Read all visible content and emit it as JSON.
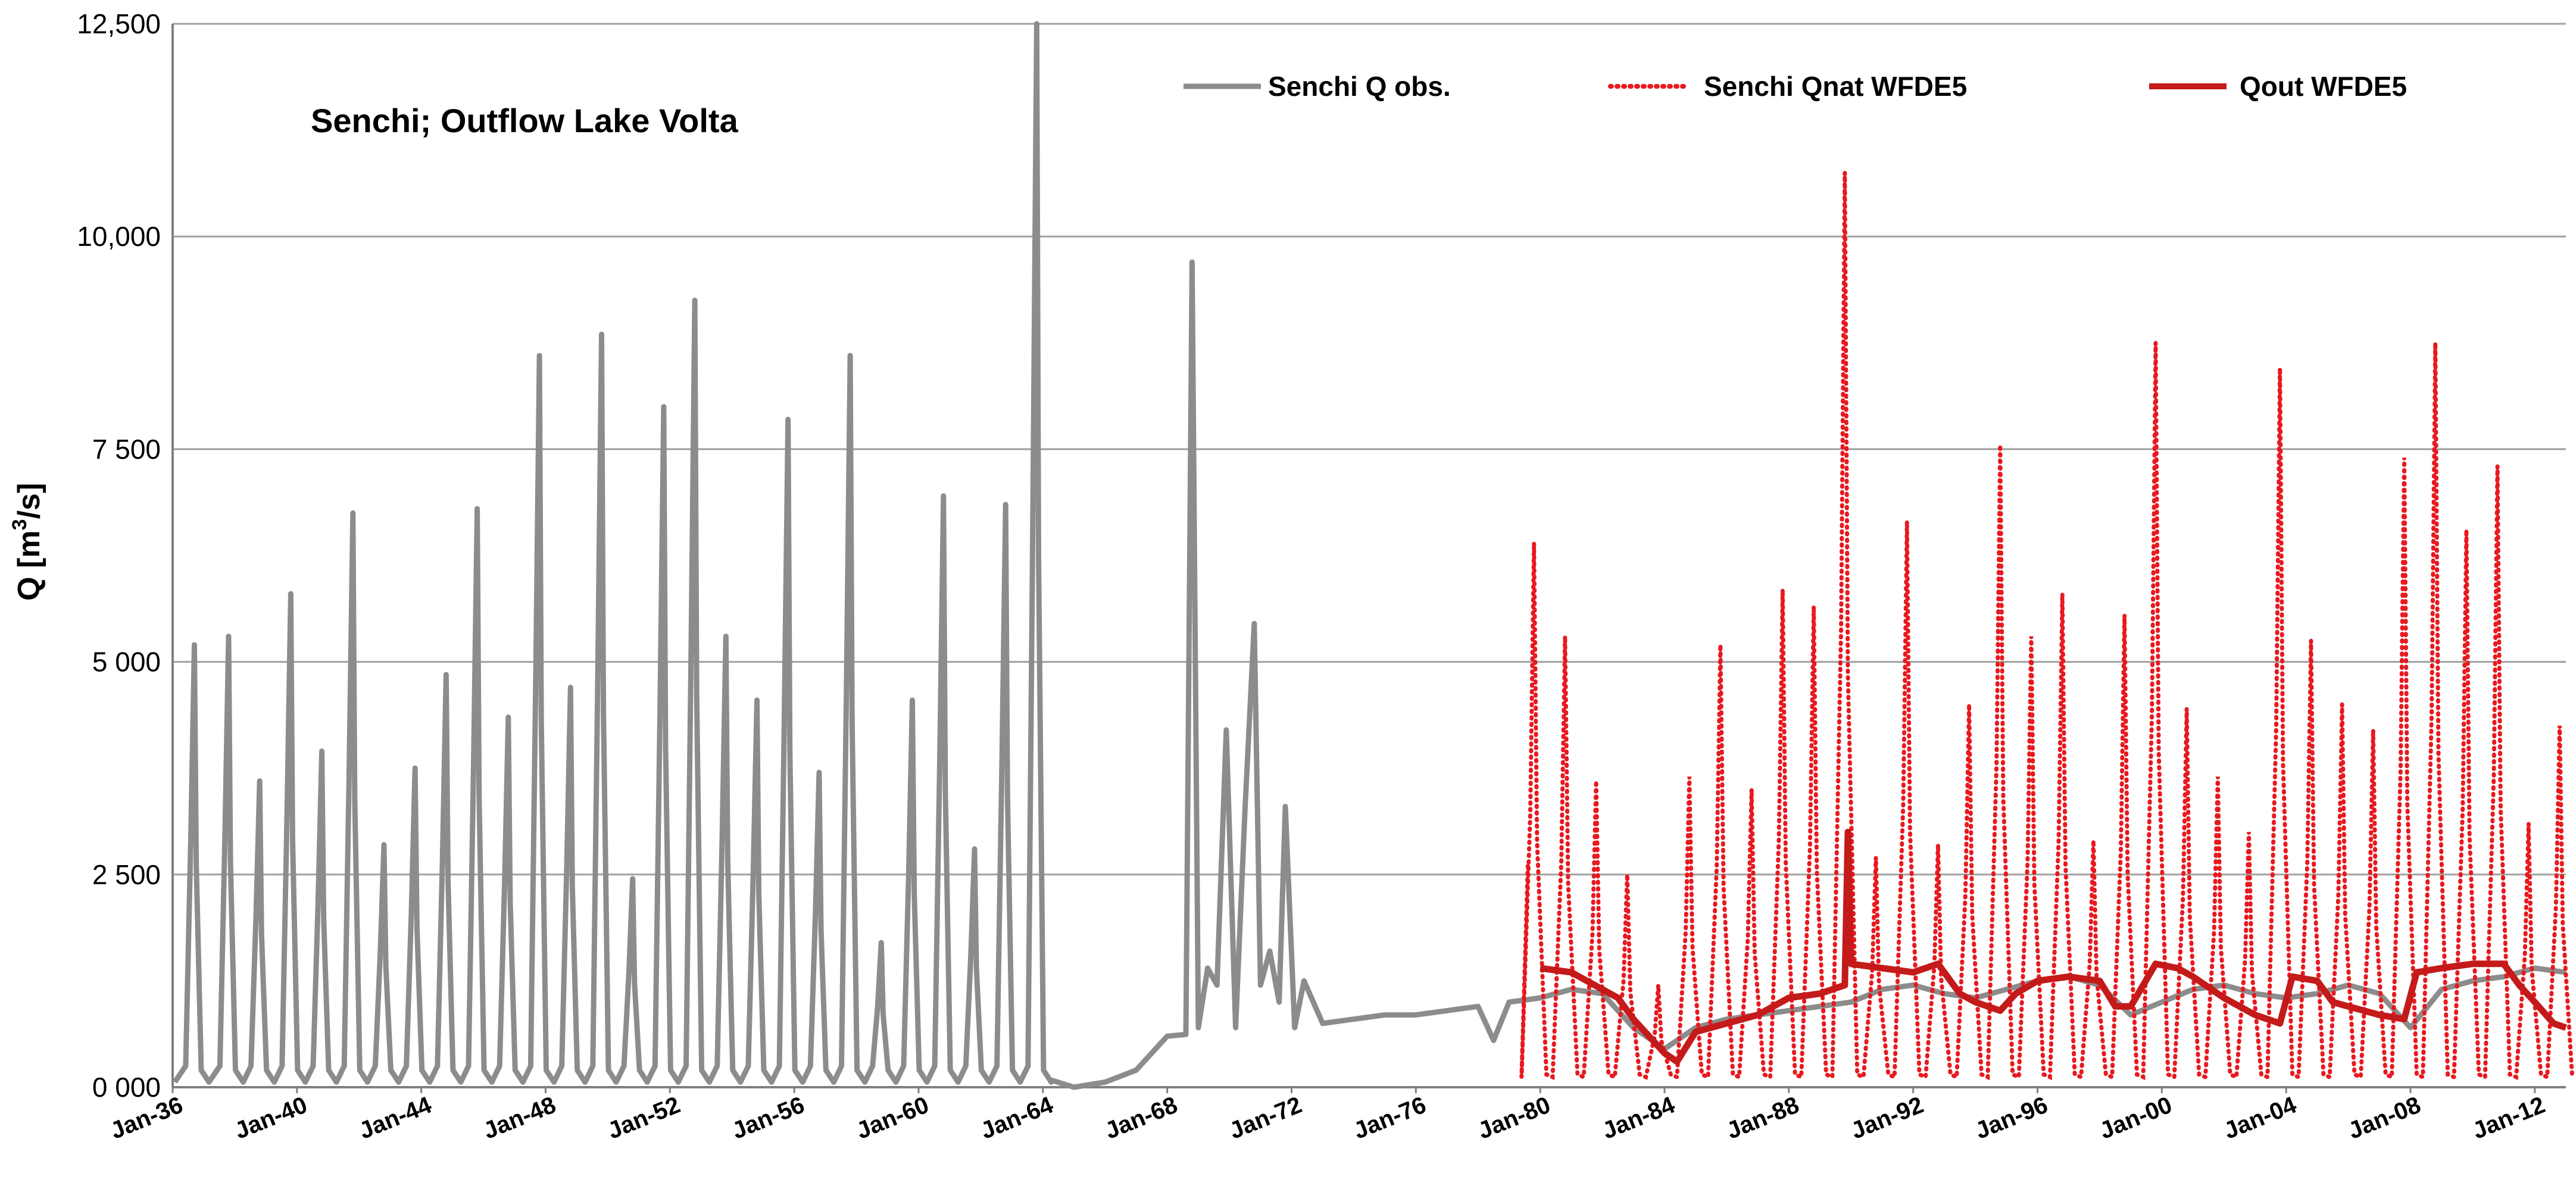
{
  "chart_data": {
    "type": "line",
    "title": "",
    "annotation": "Senchi; Outflow Lake Volta",
    "xlabel": "",
    "ylabel_main": "Q [m",
    "ylabel_sup": "3",
    "ylabel_tail": "/s]",
    "x_unit": "year",
    "xlim": [
      1936.0,
      2013.0
    ],
    "ylim": [
      0,
      12500
    ],
    "y_ticks": [
      0,
      2500,
      5000,
      7500,
      10000,
      12500
    ],
    "y_tick_labels": [
      "0 000",
      "2 500",
      "5 000",
      "7 500",
      "10,000",
      "12,500"
    ],
    "x_ticks": [
      1936,
      1940,
      1944,
      1948,
      1952,
      1956,
      1960,
      1964,
      1968,
      1972,
      1976,
      1980,
      1984,
      1988,
      1992,
      1996,
      2000,
      2004,
      2008,
      2012
    ],
    "x_tick_labels": [
      "Jan-36",
      "Jan-40",
      "Jan-44",
      "Jan-48",
      "Jan-52",
      "Jan-56",
      "Jan-60",
      "Jan-64",
      "Jan-68",
      "Jan-72",
      "Jan-76",
      "Jan-80",
      "Jan-84",
      "Jan-88",
      "Jan-92",
      "Jan-96",
      "Jan-00",
      "Jan-04",
      "Jan-08",
      "Jan-12"
    ],
    "grid": "horizontal",
    "legend_position": "top-right",
    "colors": {
      "obs": "#8c8c8c",
      "qnat": "#e8191f",
      "qout": "#c41a1a",
      "grid": "#a0a0a0"
    },
    "series": [
      {
        "name": "Senchi Q obs.",
        "style": "solid-gray",
        "peaks": [
          {
            "year": 1936.7,
            "value": 5200
          },
          {
            "year": 1937.8,
            "value": 5300
          },
          {
            "year": 1938.8,
            "value": 3600
          },
          {
            "year": 1939.8,
            "value": 5800
          },
          {
            "year": 1940.8,
            "value": 3950
          },
          {
            "year": 1941.8,
            "value": 6750
          },
          {
            "year": 1942.8,
            "value": 2850
          },
          {
            "year": 1943.8,
            "value": 3750
          },
          {
            "year": 1944.8,
            "value": 4850
          },
          {
            "year": 1945.8,
            "value": 6800
          },
          {
            "year": 1946.8,
            "value": 4350
          },
          {
            "year": 1947.8,
            "value": 8600
          },
          {
            "year": 1948.8,
            "value": 4700
          },
          {
            "year": 1949.8,
            "value": 8850
          },
          {
            "year": 1950.8,
            "value": 2450
          },
          {
            "year": 1951.8,
            "value": 8000
          },
          {
            "year": 1952.8,
            "value": 9250
          },
          {
            "year": 1953.8,
            "value": 5300
          },
          {
            "year": 1954.8,
            "value": 4550
          },
          {
            "year": 1955.8,
            "value": 7850
          },
          {
            "year": 1956.8,
            "value": 3700
          },
          {
            "year": 1957.8,
            "value": 8600
          },
          {
            "year": 1958.8,
            "value": 1700
          },
          {
            "year": 1959.8,
            "value": 4550
          },
          {
            "year": 1960.8,
            "value": 6950
          },
          {
            "year": 1961.8,
            "value": 2800
          },
          {
            "year": 1962.8,
            "value": 6850
          },
          {
            "year": 1963.8,
            "value": 12500
          }
        ],
        "post_dam": [
          {
            "year": 1964.3,
            "value": 80
          },
          {
            "year": 1965.0,
            "value": 0
          },
          {
            "year": 1966.0,
            "value": 60
          },
          {
            "year": 1967.0,
            "value": 200
          },
          {
            "year": 1968.0,
            "value": 600
          },
          {
            "year": 1968.6,
            "value": 620
          },
          {
            "year": 1968.8,
            "value": 9700
          },
          {
            "year": 1969.0,
            "value": 700
          },
          {
            "year": 1969.3,
            "value": 1400
          },
          {
            "year": 1969.6,
            "value": 1200
          },
          {
            "year": 1969.9,
            "value": 4200
          },
          {
            "year": 1970.2,
            "value": 700
          },
          {
            "year": 1970.5,
            "value": 3250
          },
          {
            "year": 1970.8,
            "value": 5450
          },
          {
            "year": 1971.0,
            "value": 1200
          },
          {
            "year": 1971.3,
            "value": 1600
          },
          {
            "year": 1971.6,
            "value": 1000
          },
          {
            "year": 1971.8,
            "value": 3300
          },
          {
            "year": 1972.1,
            "value": 700
          },
          {
            "year": 1972.4,
            "value": 1250
          },
          {
            "year": 1973.0,
            "value": 750
          },
          {
            "year": 1974.0,
            "value": 800
          },
          {
            "year": 1975.0,
            "value": 850
          },
          {
            "year": 1976.0,
            "value": 850
          },
          {
            "year": 1977.0,
            "value": 900
          },
          {
            "year": 1978.0,
            "value": 950
          },
          {
            "year": 1978.5,
            "value": 550
          },
          {
            "year": 1979.0,
            "value": 1000
          },
          {
            "year": 1980.0,
            "value": 1050
          },
          {
            "year": 1981.0,
            "value": 1150
          },
          {
            "year": 1982.0,
            "value": 1100
          },
          {
            "year": 1983.0,
            "value": 700
          },
          {
            "year": 1984.0,
            "value": 450
          },
          {
            "year": 1985.0,
            "value": 700
          },
          {
            "year": 1986.0,
            "value": 800
          },
          {
            "year": 1987.0,
            "value": 850
          },
          {
            "year": 1988.0,
            "value": 900
          },
          {
            "year": 1989.0,
            "value": 950
          },
          {
            "year": 1990.0,
            "value": 1000
          },
          {
            "year": 1991.0,
            "value": 1150
          },
          {
            "year": 1992.0,
            "value": 1200
          },
          {
            "year": 1993.0,
            "value": 1100
          },
          {
            "year": 1994.0,
            "value": 1050
          },
          {
            "year": 1995.0,
            "value": 1150
          },
          {
            "year": 1996.0,
            "value": 1250
          },
          {
            "year": 1997.0,
            "value": 1300
          },
          {
            "year": 1998.0,
            "value": 1200
          },
          {
            "year": 1999.0,
            "value": 850
          },
          {
            "year": 2000.0,
            "value": 1000
          },
          {
            "year": 2001.0,
            "value": 1150
          },
          {
            "year": 2002.0,
            "value": 1200
          },
          {
            "year": 2003.0,
            "value": 1100
          },
          {
            "year": 2004.0,
            "value": 1050
          },
          {
            "year": 2005.0,
            "value": 1100
          },
          {
            "year": 2006.0,
            "value": 1200
          },
          {
            "year": 2007.0,
            "value": 1100
          },
          {
            "year": 2008.0,
            "value": 700
          },
          {
            "year": 2009.0,
            "value": 1150
          },
          {
            "year": 2010.0,
            "value": 1250
          },
          {
            "year": 2011.0,
            "value": 1300
          },
          {
            "year": 2012.0,
            "value": 1400
          },
          {
            "year": 2013.0,
            "value": 1350
          }
        ]
      },
      {
        "name": "Senchi Qnat WFDE5",
        "style": "dotted-red",
        "peaks": [
          {
            "year": 1979.8,
            "value": 6400
          },
          {
            "year": 1980.8,
            "value": 5300
          },
          {
            "year": 1981.8,
            "value": 3600
          },
          {
            "year": 1982.8,
            "value": 2500
          },
          {
            "year": 1983.8,
            "value": 1200
          },
          {
            "year": 1984.8,
            "value": 3650
          },
          {
            "year": 1985.8,
            "value": 5200
          },
          {
            "year": 1986.8,
            "value": 3500
          },
          {
            "year": 1987.8,
            "value": 5850
          },
          {
            "year": 1988.8,
            "value": 5650
          },
          {
            "year": 1989.8,
            "value": 10750
          },
          {
            "year": 1990.8,
            "value": 2700
          },
          {
            "year": 1991.8,
            "value": 6650
          },
          {
            "year": 1992.8,
            "value": 2850
          },
          {
            "year": 1993.8,
            "value": 4500
          },
          {
            "year": 1994.8,
            "value": 7550
          },
          {
            "year": 1995.8,
            "value": 5300
          },
          {
            "year": 1996.8,
            "value": 5800
          },
          {
            "year": 1997.8,
            "value": 2900
          },
          {
            "year": 1998.8,
            "value": 5550
          },
          {
            "year": 1999.8,
            "value": 8750
          },
          {
            "year": 2000.8,
            "value": 4450
          },
          {
            "year": 2001.8,
            "value": 3650
          },
          {
            "year": 2002.8,
            "value": 3000
          },
          {
            "year": 2003.8,
            "value": 8450
          },
          {
            "year": 2004.8,
            "value": 5250
          },
          {
            "year": 2005.8,
            "value": 4500
          },
          {
            "year": 2006.8,
            "value": 4200
          },
          {
            "year": 2007.8,
            "value": 7400
          },
          {
            "year": 2008.8,
            "value": 8750
          },
          {
            "year": 2009.8,
            "value": 6550
          },
          {
            "year": 2010.8,
            "value": 7300
          },
          {
            "year": 2011.8,
            "value": 3100
          },
          {
            "year": 2012.8,
            "value": 4250
          }
        ]
      },
      {
        "name": "Qout WFDE5",
        "style": "solid-red",
        "points": [
          {
            "year": 1980.0,
            "value": 1400
          },
          {
            "year": 1981.0,
            "value": 1350
          },
          {
            "year": 1982.0,
            "value": 1150
          },
          {
            "year": 1982.5,
            "value": 1050
          },
          {
            "year": 1983.0,
            "value": 800
          },
          {
            "year": 1983.5,
            "value": 600
          },
          {
            "year": 1984.0,
            "value": 400
          },
          {
            "year": 1984.4,
            "value": 300
          },
          {
            "year": 1985.0,
            "value": 650
          },
          {
            "year": 1986.0,
            "value": 750
          },
          {
            "year": 1987.0,
            "value": 850
          },
          {
            "year": 1988.0,
            "value": 1050
          },
          {
            "year": 1989.0,
            "value": 1100
          },
          {
            "year": 1989.8,
            "value": 1200
          },
          {
            "year": 1989.9,
            "value": 3000
          },
          {
            "year": 1990.0,
            "value": 1450
          },
          {
            "year": 1991.0,
            "value": 1400
          },
          {
            "year": 1992.0,
            "value": 1350
          },
          {
            "year": 1992.8,
            "value": 1450
          },
          {
            "year": 1993.5,
            "value": 1100
          },
          {
            "year": 1994.0,
            "value": 1000
          },
          {
            "year": 1994.8,
            "value": 900
          },
          {
            "year": 1995.3,
            "value": 1100
          },
          {
            "year": 1996.0,
            "value": 1250
          },
          {
            "year": 1997.0,
            "value": 1300
          },
          {
            "year": 1998.0,
            "value": 1250
          },
          {
            "year": 1998.5,
            "value": 950
          },
          {
            "year": 1999.0,
            "value": 950
          },
          {
            "year": 1999.8,
            "value": 1450
          },
          {
            "year": 2000.5,
            "value": 1400
          },
          {
            "year": 2001.0,
            "value": 1300
          },
          {
            "year": 2002.0,
            "value": 1050
          },
          {
            "year": 2003.0,
            "value": 850
          },
          {
            "year": 2003.8,
            "value": 750
          },
          {
            "year": 2004.2,
            "value": 1300
          },
          {
            "year": 2005.0,
            "value": 1250
          },
          {
            "year": 2005.5,
            "value": 1000
          },
          {
            "year": 2006.0,
            "value": 950
          },
          {
            "year": 2007.0,
            "value": 850
          },
          {
            "year": 2007.8,
            "value": 800
          },
          {
            "year": 2008.2,
            "value": 1350
          },
          {
            "year": 2009.0,
            "value": 1400
          },
          {
            "year": 2010.0,
            "value": 1450
          },
          {
            "year": 2011.0,
            "value": 1450
          },
          {
            "year": 2011.5,
            "value": 1200
          },
          {
            "year": 2012.0,
            "value": 1000
          },
          {
            "year": 2012.6,
            "value": 750
          },
          {
            "year": 2013.0,
            "value": 700
          }
        ]
      }
    ]
  }
}
